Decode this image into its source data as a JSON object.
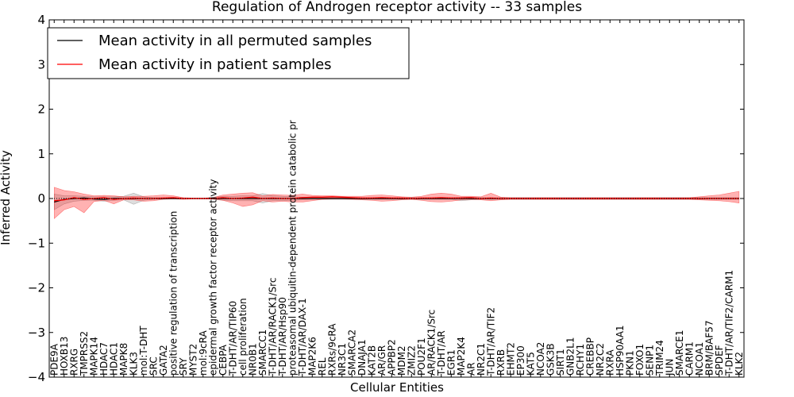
{
  "chart_data": {
    "type": "line",
    "title": "Regulation of Androgen receptor activity -- 33 samples",
    "xlabel": "Cellular Entities",
    "ylabel": "Inferred Activity",
    "ylim": [
      -4,
      4
    ],
    "yticks": [
      -4,
      -3,
      -2,
      -1,
      0,
      1,
      2,
      3,
      4
    ],
    "ytick_labels": [
      "−4",
      "−3",
      "−2",
      "−1",
      "0",
      "1",
      "2",
      "3",
      "4"
    ],
    "legend_position": "top-left",
    "categories": [
      "PDE9A",
      "HOXB13",
      "RXRG",
      "TMPRSS2",
      "MAPK14",
      "HDAC7",
      "HDAC1",
      "MAPK8",
      "KLK3",
      "mol:T-DHT",
      "SRC",
      "GATA2",
      "positive regulation of transcription",
      "SRY",
      "MYST2",
      "mol:9cRA",
      "epidermal growth factor receptor activity",
      "CEBPA",
      "T-DHT/AR/TIP60",
      "cell proliferation",
      "NR0B1",
      "SMARCC1",
      "T-DHT/AR/RACK1/Src",
      "T-DHT/AR/Hsp90",
      "proteasomal ubiquitin-dependent protein catabolic pr",
      "T-DHT/AR/DAX-1",
      "MAP2K6",
      "REL",
      "RXRs/9cRA",
      "NR3C1",
      "SMARCA2",
      "DNAJA1",
      "KAT2B",
      "AR/GR",
      "APPBP2",
      "MDM2",
      "ZMIZ2",
      "POU2F1",
      "AR/RACK1/Src",
      "T-DHT/AR",
      "EGR1",
      "MAP2K4",
      "AR",
      "NR2C1",
      "T-DHT/AR/TIF2",
      "RXRB",
      "EHMT2",
      "EP300",
      "KAT5",
      "NCOA2",
      "GSK3B",
      "SIRT1",
      "GNB2L1",
      "RCHY1",
      "CREBBP",
      "NR2C2",
      "RXRA",
      "HSP90AA1",
      "PKN1",
      "FOXO1",
      "SENP1",
      "TRIM24",
      "JUN",
      "SMARCE1",
      "CARM1",
      "NCOA1",
      "BRM/BAF57",
      "SPDEF",
      "T-DHT/AR/TIF2/CARM1",
      "KLK2"
    ],
    "series": [
      {
        "name": "Mean activity in all permuted samples",
        "color": "#000000",
        "values": [
          -0.08,
          -0.02,
          0.0,
          0.01,
          -0.01,
          -0.02,
          0.0,
          0.0,
          0.0,
          0.0,
          0.0,
          0.0,
          0.0,
          0.0,
          0.0,
          0.0,
          0.0,
          0.0,
          0.0,
          0.0,
          0.0,
          0.0,
          0.0,
          0.0,
          0.0,
          0.0,
          0.0,
          0.0,
          0.0,
          0.0,
          0.0,
          0.0,
          0.0,
          0.0,
          0.0,
          0.0,
          0.0,
          0.0,
          0.0,
          0.0,
          0.0,
          0.0,
          0.0,
          0.0,
          0.0,
          0.0,
          0.0,
          0.0,
          0.0,
          0.0,
          0.0,
          0.0,
          0.0,
          0.0,
          0.0,
          0.0,
          0.0,
          0.0,
          0.0,
          0.0,
          0.0,
          0.0,
          0.0,
          0.0,
          0.0,
          0.0,
          0.0,
          0.0,
          0.0,
          0.0
        ],
        "band_lower": [
          -0.25,
          -0.12,
          -0.06,
          -0.04,
          -0.04,
          -0.06,
          -0.04,
          -0.03,
          -0.13,
          -0.04,
          -0.02,
          -0.01,
          0.0,
          0.0,
          0.0,
          0.0,
          -0.02,
          -0.04,
          -0.05,
          -0.05,
          -0.05,
          -0.1,
          -0.05,
          -0.05,
          -0.04,
          -0.03,
          -0.02,
          -0.02,
          -0.02,
          -0.02,
          -0.02,
          -0.02,
          -0.02,
          -0.02,
          -0.02,
          -0.02,
          -0.02,
          -0.02,
          -0.02,
          -0.02,
          -0.02,
          -0.05,
          -0.03,
          -0.02,
          -0.02,
          -0.02,
          -0.02,
          -0.02,
          -0.02,
          -0.02,
          -0.02,
          -0.02,
          -0.02,
          -0.02,
          -0.02,
          -0.02,
          -0.02,
          -0.02,
          -0.02,
          -0.02,
          -0.02,
          -0.02,
          -0.02,
          -0.02,
          -0.02,
          -0.02,
          -0.02,
          -0.02,
          -0.02,
          -0.02
        ],
        "band_upper": [
          0.1,
          0.06,
          0.06,
          0.05,
          0.04,
          0.04,
          0.04,
          0.05,
          0.12,
          0.04,
          0.02,
          0.02,
          0.0,
          0.0,
          0.0,
          0.0,
          0.03,
          0.05,
          0.05,
          0.06,
          0.06,
          0.11,
          0.06,
          0.05,
          0.04,
          0.03,
          0.02,
          0.02,
          0.02,
          0.02,
          0.02,
          0.02,
          0.02,
          0.02,
          0.02,
          0.02,
          0.02,
          0.02,
          0.02,
          0.02,
          0.02,
          0.03,
          0.03,
          0.02,
          0.02,
          0.02,
          0.02,
          0.02,
          0.02,
          0.02,
          0.02,
          0.02,
          0.02,
          0.02,
          0.02,
          0.02,
          0.02,
          0.02,
          0.02,
          0.02,
          0.02,
          0.02,
          0.02,
          0.02,
          0.02,
          0.02,
          0.02,
          0.02,
          0.02,
          0.02
        ]
      },
      {
        "name": "Mean activity in patient samples",
        "color": "#ff0000",
        "values": [
          -0.05,
          -0.03,
          0.02,
          -0.02,
          0.0,
          0.02,
          -0.02,
          0.0,
          0.01,
          0.0,
          0.0,
          0.01,
          0.02,
          0.0,
          0.0,
          0.0,
          0.0,
          0.02,
          0.0,
          0.01,
          0.03,
          0.0,
          0.01,
          0.0,
          0.0,
          0.02,
          0.03,
          0.03,
          0.04,
          0.03,
          0.02,
          0.01,
          0.01,
          0.02,
          0.01,
          0.01,
          0.0,
          0.01,
          0.01,
          0.02,
          0.01,
          0.01,
          0.02,
          0.0,
          0.01,
          0.0,
          0.0,
          0.0,
          0.0,
          0.0,
          0.0,
          0.0,
          0.0,
          0.0,
          0.0,
          0.0,
          0.0,
          0.0,
          0.0,
          0.0,
          0.0,
          0.0,
          0.0,
          0.0,
          0.0,
          0.0,
          0.0,
          0.0,
          0.0,
          0.0
        ],
        "band_lower": [
          -0.45,
          -0.25,
          -0.18,
          -0.32,
          -0.07,
          -0.04,
          -0.12,
          -0.03,
          -0.03,
          -0.06,
          -0.05,
          -0.02,
          -0.01,
          -0.02,
          -0.01,
          -0.01,
          -0.01,
          -0.04,
          -0.1,
          -0.18,
          -0.14,
          -0.05,
          -0.08,
          -0.06,
          -0.08,
          -0.08,
          -0.05,
          -0.02,
          -0.01,
          -0.01,
          -0.02,
          -0.03,
          -0.04,
          -0.06,
          -0.05,
          -0.03,
          -0.02,
          -0.04,
          -0.07,
          -0.08,
          -0.06,
          -0.03,
          -0.02,
          -0.03,
          -0.05,
          -0.03,
          -0.02,
          -0.02,
          -0.02,
          -0.02,
          -0.02,
          -0.02,
          -0.02,
          -0.02,
          -0.02,
          -0.02,
          -0.02,
          -0.02,
          -0.02,
          -0.02,
          -0.02,
          -0.02,
          -0.02,
          -0.02,
          -0.02,
          -0.03,
          -0.04,
          -0.05,
          -0.07,
          -0.1
        ],
        "band_upper": [
          0.25,
          0.18,
          0.15,
          0.1,
          0.06,
          0.07,
          0.06,
          0.04,
          0.05,
          0.05,
          0.06,
          0.08,
          0.06,
          0.02,
          0.01,
          0.01,
          0.02,
          0.08,
          0.1,
          0.12,
          0.13,
          0.06,
          0.09,
          0.08,
          0.07,
          0.1,
          0.07,
          0.06,
          0.06,
          0.05,
          0.05,
          0.05,
          0.07,
          0.08,
          0.06,
          0.04,
          0.03,
          0.05,
          0.1,
          0.12,
          0.1,
          0.05,
          0.05,
          0.04,
          0.12,
          0.03,
          0.02,
          0.02,
          0.02,
          0.02,
          0.02,
          0.02,
          0.02,
          0.02,
          0.02,
          0.02,
          0.02,
          0.02,
          0.02,
          0.02,
          0.02,
          0.02,
          0.02,
          0.02,
          0.02,
          0.04,
          0.06,
          0.08,
          0.12,
          0.16
        ]
      }
    ]
  }
}
